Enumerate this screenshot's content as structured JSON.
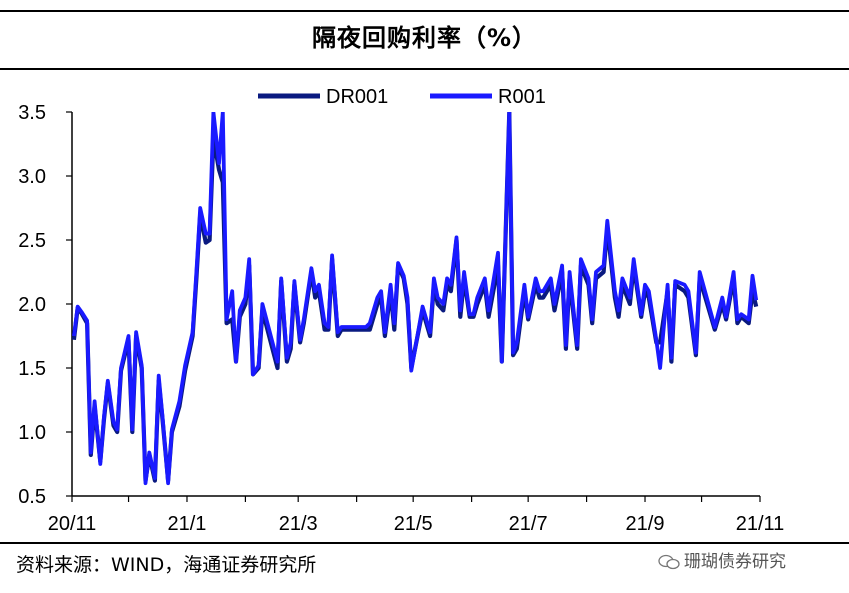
{
  "header": {
    "title": "隔夜回购利率（%）"
  },
  "footer": {
    "source": "资料来源：WIND，海通证券研究所",
    "watermark": "珊瑚债券研究"
  },
  "colors": {
    "DR001": "#0a1a80",
    "R001": "#1a1aff"
  },
  "chart_data": {
    "type": "line",
    "title": "隔夜回购利率（%）",
    "xlabel": "",
    "ylabel": "",
    "ylim": [
      0.5,
      3.5
    ],
    "yticks": [
      "0.5",
      "1.0",
      "1.5",
      "2.0",
      "2.5",
      "3.0",
      "3.5"
    ],
    "xticks": [
      "20/11",
      "21/1",
      "21/3",
      "21/5",
      "21/7",
      "21/9",
      "21/11"
    ],
    "xlim": [
      "2020-11-01",
      "2021-11-01"
    ],
    "legend": "top-center",
    "grid": false,
    "x": [
      "2020-11-02",
      "2020-11-04",
      "2020-11-06",
      "2020-11-09",
      "2020-11-11",
      "2020-11-13",
      "2020-11-16",
      "2020-11-18",
      "2020-11-20",
      "2020-11-23",
      "2020-11-25",
      "2020-11-27",
      "2020-12-01",
      "2020-12-03",
      "2020-12-05",
      "2020-12-08",
      "2020-12-10",
      "2020-12-12",
      "2020-12-15",
      "2020-12-17",
      "2020-12-19",
      "2020-12-22",
      "2020-12-24",
      "2020-12-28",
      "2020-12-31",
      "2021-01-04",
      "2021-01-06",
      "2021-01-08",
      "2021-01-11",
      "2021-01-13",
      "2021-01-15",
      "2021-01-18",
      "2021-01-20",
      "2021-01-22",
      "2021-01-25",
      "2021-01-27",
      "2021-01-29",
      "2021-02-01",
      "2021-02-03",
      "2021-02-05",
      "2021-02-08",
      "2021-02-10",
      "2021-02-18",
      "2021-02-20",
      "2021-02-23",
      "2021-02-25",
      "2021-02-27",
      "2021-03-02",
      "2021-03-04",
      "2021-03-08",
      "2021-03-10",
      "2021-03-12",
      "2021-03-15",
      "2021-03-17",
      "2021-03-19",
      "2021-03-22",
      "2021-03-24",
      "2021-03-26",
      "2021-03-30",
      "2021-04-01",
      "2021-04-06",
      "2021-04-08",
      "2021-04-12",
      "2021-04-14",
      "2021-04-16",
      "2021-04-19",
      "2021-04-21",
      "2021-04-23",
      "2021-04-26",
      "2021-04-28",
      "2021-04-30",
      "2021-05-06",
      "2021-05-10",
      "2021-05-12",
      "2021-05-14",
      "2021-05-17",
      "2021-05-19",
      "2021-05-21",
      "2021-05-24",
      "2021-05-26",
      "2021-05-28",
      "2021-05-31",
      "2021-06-02",
      "2021-06-04",
      "2021-06-08",
      "2021-06-10",
      "2021-06-15",
      "2021-06-17",
      "2021-06-21",
      "2021-06-23",
      "2021-06-25",
      "2021-06-29",
      "2021-07-01",
      "2021-07-05",
      "2021-07-07",
      "2021-07-09",
      "2021-07-13",
      "2021-07-15",
      "2021-07-19",
      "2021-07-21",
      "2021-07-23",
      "2021-07-27",
      "2021-07-29",
      "2021-08-02",
      "2021-08-04",
      "2021-08-06",
      "2021-08-10",
      "2021-08-12",
      "2021-08-16",
      "2021-08-18",
      "2021-08-20",
      "2021-08-24",
      "2021-08-26",
      "2021-08-30",
      "2021-09-01",
      "2021-09-03",
      "2021-09-07",
      "2021-09-09",
      "2021-09-13",
      "2021-09-15",
      "2021-09-17",
      "2021-09-22",
      "2021-09-24",
      "2021-09-28",
      "2021-09-30",
      "2021-10-08",
      "2021-10-12",
      "2021-10-14",
      "2021-10-18",
      "2021-10-20",
      "2021-10-22",
      "2021-10-26",
      "2021-10-28",
      "2021-10-30"
    ],
    "series": [
      {
        "name": "DR001",
        "values": [
          1.72,
          1.97,
          1.93,
          1.85,
          0.82,
          1.2,
          0.77,
          1.1,
          1.38,
          1.05,
          1.0,
          1.48,
          1.72,
          1.0,
          1.75,
          1.5,
          0.62,
          0.82,
          0.62,
          1.4,
          1.1,
          0.62,
          1.0,
          1.2,
          1.48,
          1.75,
          2.2,
          2.7,
          2.48,
          2.5,
          3.3,
          3.05,
          2.95,
          1.85,
          1.88,
          1.55,
          1.9,
          2.0,
          2.3,
          1.45,
          1.5,
          1.95,
          1.5,
          2.18,
          1.55,
          1.65,
          2.15,
          1.7,
          1.85,
          2.25,
          2.05,
          2.1,
          1.8,
          1.8,
          2.35,
          1.75,
          1.8,
          1.8,
          1.8,
          1.8,
          1.8,
          1.8,
          2.0,
          2.05,
          1.75,
          2.1,
          1.8,
          2.3,
          2.2,
          2.0,
          1.5,
          1.95,
          1.75,
          2.15,
          2.0,
          1.95,
          2.15,
          2.1,
          2.5,
          1.9,
          2.2,
          1.9,
          1.9,
          2.0,
          2.15,
          1.9,
          2.3,
          1.55,
          3.5,
          1.6,
          1.65,
          2.1,
          1.88,
          2.15,
          2.05,
          2.05,
          2.15,
          1.95,
          2.25,
          1.65,
          2.2,
          1.65,
          2.3,
          2.15,
          1.85,
          2.2,
          2.25,
          2.6,
          2.05,
          1.9,
          2.15,
          2.0,
          2.3,
          1.9,
          2.1,
          2.05,
          1.7,
          1.7,
          2.1,
          1.55,
          2.15,
          2.1,
          2.05,
          1.6,
          2.2,
          1.8,
          2.0,
          1.88,
          2.2,
          1.85,
          1.9,
          1.85,
          2.1,
          1.98
        ]
      },
      {
        "name": "R001",
        "values": [
          1.75,
          1.98,
          1.94,
          1.87,
          0.84,
          1.24,
          0.75,
          1.12,
          1.4,
          1.08,
          1.02,
          1.5,
          1.75,
          1.02,
          1.78,
          1.52,
          0.6,
          0.84,
          0.64,
          1.44,
          1.12,
          0.6,
          1.02,
          1.24,
          1.52,
          1.78,
          2.25,
          2.75,
          2.55,
          2.55,
          3.5,
          3.1,
          3.5,
          1.88,
          2.1,
          1.55,
          1.95,
          2.05,
          2.35,
          1.45,
          1.52,
          2.0,
          1.55,
          2.2,
          1.58,
          1.7,
          2.18,
          1.72,
          1.88,
          2.28,
          2.1,
          2.15,
          1.85,
          1.82,
          2.38,
          1.78,
          1.82,
          1.82,
          1.82,
          1.82,
          1.82,
          1.85,
          2.05,
          2.1,
          1.78,
          2.15,
          1.85,
          2.32,
          2.22,
          2.05,
          1.48,
          1.98,
          1.78,
          2.2,
          2.05,
          2.0,
          2.2,
          2.15,
          2.52,
          1.95,
          2.25,
          1.92,
          1.92,
          2.05,
          2.2,
          1.95,
          2.4,
          1.55,
          3.5,
          1.62,
          1.7,
          2.15,
          1.9,
          2.2,
          2.1,
          2.1,
          2.2,
          2.0,
          2.3,
          1.68,
          2.25,
          1.68,
          2.35,
          2.2,
          1.88,
          2.25,
          2.3,
          2.65,
          2.1,
          1.95,
          2.2,
          2.05,
          2.35,
          1.92,
          2.15,
          2.1,
          1.72,
          1.5,
          2.15,
          1.58,
          2.18,
          2.15,
          2.1,
          1.62,
          2.25,
          1.82,
          2.05,
          1.9,
          2.25,
          1.88,
          1.92,
          1.88,
          2.22,
          2.03
        ]
      }
    ]
  }
}
